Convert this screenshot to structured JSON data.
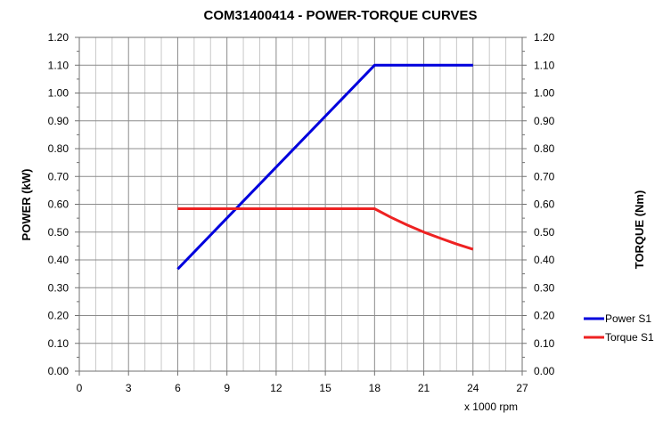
{
  "chart_data": {
    "type": "line",
    "title": "COM31400414 - POWER-TORQUE CURVES",
    "xlabel": "x 1000 rpm",
    "ylabel_left": "POWER (kW)",
    "ylabel_right": "TORQUE (Nm)",
    "xlim": [
      0,
      27
    ],
    "ylim": [
      0,
      1.2
    ],
    "x_ticks": [
      "0",
      "3",
      "6",
      "9",
      "12",
      "15",
      "18",
      "21",
      "24",
      "27"
    ],
    "y_ticks": [
      "0.00",
      "0.10",
      "0.20",
      "0.30",
      "0.40",
      "0.50",
      "0.60",
      "0.70",
      "0.80",
      "0.90",
      "1.00",
      "1.10",
      "1.20"
    ],
    "grid": true,
    "legend_position": "right",
    "series": [
      {
        "name": "Power S1",
        "color": "#0000dd",
        "x": [
          6,
          18,
          24
        ],
        "y": [
          0.367,
          1.1,
          1.1
        ]
      },
      {
        "name": "Torque S1",
        "color": "#ee2222",
        "x": [
          6,
          18,
          19,
          20,
          21,
          22,
          23,
          24
        ],
        "y": [
          0.584,
          0.584,
          0.553,
          0.525,
          0.5,
          0.478,
          0.457,
          0.438
        ]
      }
    ]
  }
}
